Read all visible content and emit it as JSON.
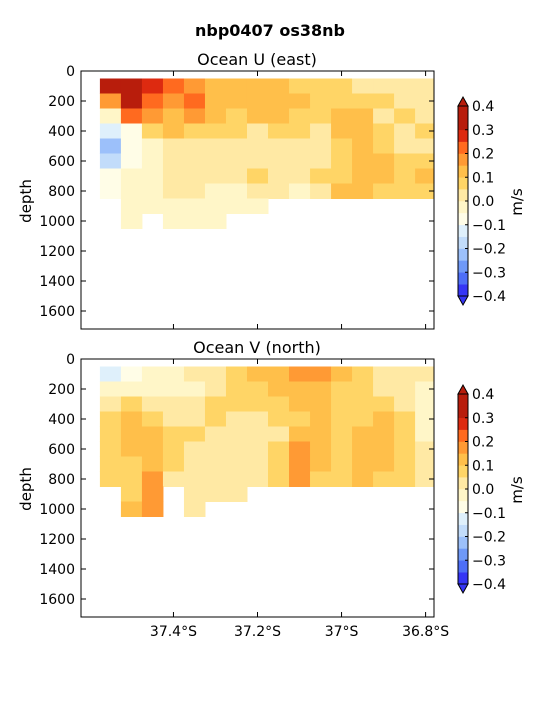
{
  "figure_title": "nbp0407 os38nb",
  "chart_data": [
    {
      "type": "heatmap",
      "title": "Ocean U (east)",
      "ylabel": "depth",
      "y_inverted": true,
      "ylim": [
        1720,
        0
      ],
      "yticks": [
        0,
        200,
        400,
        600,
        800,
        1000,
        1200,
        1400,
        1600
      ],
      "xlim": [
        -37.62,
        -36.78
      ],
      "x_tick_values": [
        -37.4,
        -37.2,
        -37.0,
        -36.8
      ],
      "x_tick_labels_shown": false,
      "colorbar": {
        "label": "m/s",
        "levels": [
          -0.4,
          -0.35,
          -0.3,
          -0.25,
          -0.2,
          -0.15,
          -0.1,
          -0.05,
          0.0,
          0.05,
          0.1,
          0.15,
          0.2,
          0.25,
          0.3,
          0.35,
          0.4
        ],
        "tick_values": [
          -0.4,
          -0.3,
          -0.2,
          -0.1,
          0.0,
          0.1,
          0.2,
          0.3,
          0.4
        ],
        "tick_labels": [
          "−0.4",
          "−0.3",
          "−0.2",
          "−0.1",
          "0.0",
          "0.1",
          "0.2",
          "0.3",
          "0.4"
        ],
        "colors": [
          "#3535f5",
          "#4d6ef7",
          "#6f99f7",
          "#9cc0fa",
          "#c2dcfa",
          "#dff0fb",
          "#fffde7",
          "#fff6c8",
          "#ffe9a4",
          "#ffd566",
          "#ffbf4a",
          "#ff9a34",
          "#ff6a1f",
          "#dd2a10",
          "#b81d0c"
        ],
        "extend": "both"
      },
      "x": [
        -37.55,
        -37.5,
        -37.45,
        -37.4,
        -37.35,
        -37.3,
        -37.25,
        -37.2,
        -37.15,
        -37.1,
        -37.05,
        -37.0,
        -36.95,
        -36.9,
        -36.85,
        -36.8
      ],
      "y": [
        100,
        200,
        300,
        400,
        500,
        600,
        700,
        800,
        900,
        1000
      ],
      "values": [
        [
          0.3,
          0.3,
          0.25,
          0.2,
          0.15,
          0.12,
          0.1,
          0.1,
          0.12,
          0.08,
          0.05,
          0.08,
          0.03,
          0.03,
          0.03,
          0.03
        ],
        [
          0.15,
          0.3,
          0.2,
          0.15,
          0.2,
          0.12,
          0.1,
          0.1,
          0.12,
          0.1,
          0.08,
          0.05,
          0.05,
          0.05,
          0.03,
          0.03
        ],
        [
          -0.05,
          0.2,
          0.15,
          0.12,
          0.18,
          0.1,
          0.08,
          0.12,
          0.1,
          0.08,
          0.05,
          0.12,
          0.1,
          0.03,
          0.05,
          0.03
        ],
        [
          -0.15,
          -0.08,
          0.05,
          0.1,
          0.08,
          0.05,
          0.05,
          0.03,
          0.08,
          0.05,
          0.03,
          0.1,
          0.12,
          0.08,
          0.03,
          0.05
        ],
        [
          -0.22,
          -0.1,
          -0.05,
          0.02,
          0.0,
          0.02,
          0.02,
          0.0,
          0.02,
          0.03,
          0.02,
          0.05,
          0.1,
          0.05,
          0.03,
          0.03
        ],
        [
          -0.18,
          -0.1,
          -0.05,
          0.02,
          0.03,
          0.0,
          0.0,
          0.02,
          0.03,
          0.02,
          0.0,
          0.05,
          0.12,
          0.1,
          0.05,
          0.05
        ],
        [
          -0.1,
          -0.05,
          -0.03,
          0.03,
          0.02,
          0.0,
          0.02,
          0.05,
          0.03,
          0.02,
          0.05,
          0.08,
          0.12,
          0.12,
          0.08,
          0.1
        ],
        [
          -0.08,
          -0.05,
          -0.03,
          0.02,
          0.0,
          -0.03,
          -0.02,
          0.0,
          0.02,
          -0.03,
          0.02,
          0.12,
          0.1,
          0.08,
          0.05,
          0.08
        ],
        [
          null,
          -0.03,
          -0.02,
          -0.02,
          -0.03,
          -0.03,
          -0.02,
          -0.02,
          null,
          null,
          null,
          null,
          null,
          null,
          null,
          null
        ],
        [
          null,
          -0.02,
          null,
          -0.02,
          -0.02,
          -0.02,
          null,
          null,
          null,
          null,
          null,
          null,
          null,
          null,
          null,
          null
        ]
      ]
    },
    {
      "type": "heatmap",
      "title": "Ocean V (north)",
      "ylabel": "depth",
      "y_inverted": true,
      "ylim": [
        1720,
        0
      ],
      "yticks": [
        0,
        200,
        400,
        600,
        800,
        1000,
        1200,
        1400,
        1600
      ],
      "xlim": [
        -37.62,
        -36.78
      ],
      "x_tick_values": [
        -37.4,
        -37.2,
        -37.0,
        -36.8
      ],
      "x_tick_labels": [
        "37.4°S",
        "37.2°S",
        "37°S",
        "36.8°S"
      ],
      "colorbar": {
        "label": "m/s",
        "levels": [
          -0.4,
          -0.35,
          -0.3,
          -0.25,
          -0.2,
          -0.15,
          -0.1,
          -0.05,
          0.0,
          0.05,
          0.1,
          0.15,
          0.2,
          0.25,
          0.3,
          0.35,
          0.4
        ],
        "tick_values": [
          -0.4,
          -0.3,
          -0.2,
          -0.1,
          0.0,
          0.1,
          0.2,
          0.3,
          0.4
        ],
        "tick_labels": [
          "−0.4",
          "−0.3",
          "−0.2",
          "−0.1",
          "0.0",
          "0.1",
          "0.2",
          "0.3",
          "0.4"
        ],
        "colors": [
          "#3535f5",
          "#4d6ef7",
          "#6f99f7",
          "#9cc0fa",
          "#c2dcfa",
          "#dff0fb",
          "#fffde7",
          "#fff6c8",
          "#ffe9a4",
          "#ffd566",
          "#ffbf4a",
          "#ff9a34",
          "#ff6a1f",
          "#dd2a10",
          "#b81d0c"
        ],
        "extend": "both"
      },
      "x": [
        -37.55,
        -37.5,
        -37.45,
        -37.4,
        -37.35,
        -37.3,
        -37.25,
        -37.2,
        -37.15,
        -37.1,
        -37.05,
        -37.0,
        -36.95,
        -36.9,
        -36.85,
        -36.8
      ],
      "y": [
        100,
        200,
        300,
        400,
        500,
        600,
        700,
        800,
        900,
        1000
      ],
      "values": [
        [
          -0.15,
          -0.08,
          -0.05,
          -0.03,
          0.0,
          0.02,
          0.05,
          0.1,
          0.12,
          0.15,
          0.15,
          0.1,
          0.05,
          0.02,
          0.0,
          0.0
        ],
        [
          -0.05,
          -0.03,
          -0.02,
          -0.05,
          -0.03,
          0.02,
          0.05,
          0.08,
          0.12,
          0.12,
          0.12,
          0.08,
          0.05,
          0.02,
          0.0,
          -0.02
        ],
        [
          0.02,
          0.05,
          0.03,
          0.0,
          0.02,
          0.05,
          0.05,
          0.05,
          0.08,
          0.1,
          0.1,
          0.05,
          0.08,
          0.05,
          0.02,
          -0.05
        ],
        [
          0.05,
          0.1,
          0.08,
          0.02,
          0.03,
          0.05,
          0.03,
          0.0,
          0.05,
          0.08,
          0.12,
          0.05,
          0.08,
          0.1,
          0.05,
          -0.05
        ],
        [
          0.08,
          0.12,
          0.1,
          0.05,
          0.05,
          0.03,
          0.0,
          0.02,
          0.03,
          0.12,
          0.12,
          0.05,
          0.1,
          0.12,
          0.08,
          -0.02
        ],
        [
          0.05,
          0.1,
          0.12,
          0.05,
          0.03,
          0.02,
          0.0,
          0.0,
          0.05,
          0.15,
          0.12,
          0.08,
          0.12,
          0.1,
          0.05,
          0.0
        ],
        [
          0.05,
          0.08,
          0.12,
          0.05,
          0.02,
          0.02,
          0.0,
          0.02,
          0.05,
          0.15,
          0.1,
          0.08,
          0.12,
          0.1,
          0.08,
          0.02
        ],
        [
          0.05,
          0.08,
          0.15,
          0.03,
          0.02,
          0.0,
          0.02,
          0.03,
          0.05,
          0.18,
          0.08,
          0.05,
          0.1,
          0.08,
          0.05,
          0.02
        ],
        [
          null,
          0.08,
          0.15,
          null,
          0.02,
          0.02,
          0.02,
          null,
          null,
          null,
          null,
          null,
          null,
          null,
          null,
          null
        ],
        [
          null,
          0.1,
          0.15,
          null,
          0.02,
          null,
          null,
          null,
          null,
          null,
          null,
          null,
          null,
          null,
          null,
          null
        ]
      ]
    }
  ]
}
